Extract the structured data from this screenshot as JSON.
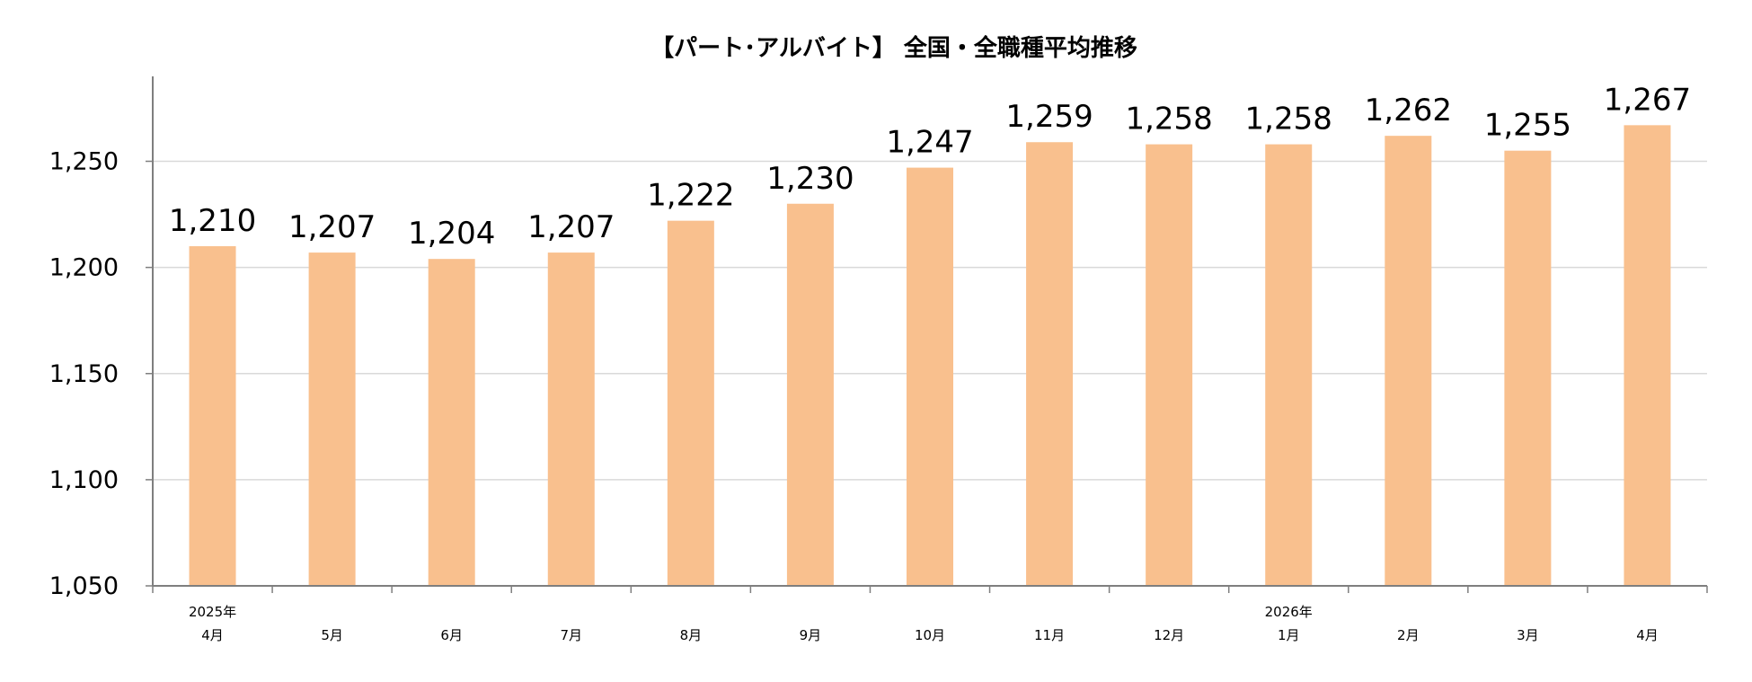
{
  "chart_data": {
    "type": "bar",
    "title": "【パート･アルバイト】 全国・全職種平均推移",
    "categories": [
      "4月",
      "5月",
      "6月",
      "7月",
      "8月",
      "9月",
      "10月",
      "11月",
      "12月",
      "1月",
      "2月",
      "3月",
      "4月"
    ],
    "year_labels": [
      "2025年",
      "",
      "",
      "",
      "",
      "",
      "",
      "",
      "",
      "2026年",
      "",
      "",
      ""
    ],
    "values": [
      1210,
      1207,
      1204,
      1207,
      1222,
      1230,
      1247,
      1259,
      1258,
      1258,
      1262,
      1255,
      1267
    ],
    "value_labels": [
      "1,210",
      "1,207",
      "1,204",
      "1,207",
      "1,222",
      "1,230",
      "1,247",
      "1,259",
      "1,258",
      "1,258",
      "1,262",
      "1,255",
      "1,267"
    ],
    "ylim": [
      1050,
      1290
    ],
    "yticks": [
      1050,
      1100,
      1150,
      1200,
      1250
    ],
    "ytick_labels": [
      "1,050",
      "1,100",
      "1,150",
      "1,200",
      "1,250"
    ],
    "xlabel": "",
    "ylabel": "",
    "grid": true,
    "colors": {
      "bar": "#F9C08E",
      "grid": "#D9D9D9",
      "axis": "#7F7F7F"
    }
  }
}
